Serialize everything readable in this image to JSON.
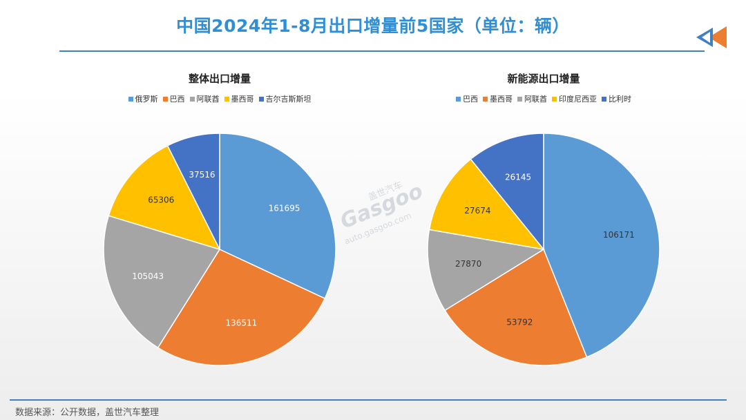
{
  "title": "中国2024年1-8月出口增量前5国家（单位：辆）",
  "watermark": {
    "cn": "盖世汽车",
    "brand": "Gasgoo",
    "url": "auto.gasgoo.com"
  },
  "footer": "数据来源：公开数据，盖世汽车整理",
  "chart_data": [
    {
      "type": "pie",
      "title": "整体出口增量",
      "categories": [
        "俄罗斯",
        "巴西",
        "阿联酋",
        "墨西哥",
        "吉尔吉斯斯坦"
      ],
      "values": [
        161695,
        136511,
        105043,
        65306,
        37516
      ],
      "colors": [
        "#5b9bd5",
        "#ed7d31",
        "#a5a5a5",
        "#ffc000",
        "#4472c4"
      ],
      "label_colors": [
        "#ffffff",
        "#ffffff",
        "#ffffff",
        "#333333",
        "#ffffff"
      ],
      "legend_position": "top"
    },
    {
      "type": "pie",
      "title": "新能源出口增量",
      "categories": [
        "巴西",
        "墨西哥",
        "阿联酋",
        "印度尼西亚",
        "比利时"
      ],
      "values": [
        106171,
        53792,
        27870,
        27674,
        26145
      ],
      "colors": [
        "#5b9bd5",
        "#ed7d31",
        "#a5a5a5",
        "#ffc000",
        "#4472c4"
      ],
      "label_colors": [
        "#333333",
        "#333333",
        "#333333",
        "#333333",
        "#ffffff"
      ],
      "legend_position": "top"
    }
  ]
}
